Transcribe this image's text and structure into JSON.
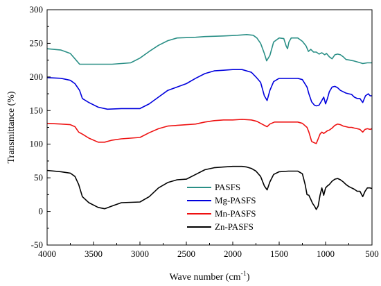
{
  "chart_data": {
    "type": "line",
    "xlabel": "Wave number (cm",
    "xlabel_sup": "-1",
    "xlabel_end": ")",
    "ylabel": "Transmittance (%)",
    "xlim": [
      4000,
      500
    ],
    "ylim": [
      -50,
      300
    ],
    "xticks": [
      4000,
      3500,
      3000,
      2500,
      2000,
      1500,
      1000,
      500
    ],
    "yticks": [
      -50,
      0,
      50,
      100,
      150,
      200,
      250,
      300
    ],
    "grid": false,
    "legend_position": "bottom-center",
    "series": [
      {
        "name": "PASFS",
        "color": "#2a8f86",
        "points": [
          [
            4000,
            242
          ],
          [
            3850,
            240
          ],
          [
            3750,
            235
          ],
          [
            3700,
            227
          ],
          [
            3650,
            219
          ],
          [
            3500,
            219
          ],
          [
            3300,
            219
          ],
          [
            3100,
            221
          ],
          [
            3000,
            228
          ],
          [
            2900,
            238
          ],
          [
            2800,
            247
          ],
          [
            2700,
            254
          ],
          [
            2600,
            258
          ],
          [
            2400,
            259
          ],
          [
            2300,
            260
          ],
          [
            2100,
            261
          ],
          [
            1950,
            262
          ],
          [
            1850,
            263
          ],
          [
            1780,
            262
          ],
          [
            1740,
            258
          ],
          [
            1700,
            250
          ],
          [
            1660,
            235
          ],
          [
            1635,
            224
          ],
          [
            1600,
            232
          ],
          [
            1560,
            252
          ],
          [
            1500,
            258
          ],
          [
            1450,
            257
          ],
          [
            1425,
            246
          ],
          [
            1410,
            242
          ],
          [
            1395,
            252
          ],
          [
            1370,
            258
          ],
          [
            1300,
            258
          ],
          [
            1250,
            253
          ],
          [
            1210,
            246
          ],
          [
            1185,
            238
          ],
          [
            1160,
            241
          ],
          [
            1130,
            237
          ],
          [
            1100,
            237
          ],
          [
            1070,
            234
          ],
          [
            1040,
            236
          ],
          [
            1010,
            233
          ],
          [
            990,
            235
          ],
          [
            960,
            230
          ],
          [
            930,
            227
          ],
          [
            900,
            233
          ],
          [
            870,
            234
          ],
          [
            840,
            233
          ],
          [
            810,
            230
          ],
          [
            780,
            226
          ],
          [
            740,
            225
          ],
          [
            700,
            224
          ],
          [
            650,
            222
          ],
          [
            600,
            220
          ],
          [
            550,
            221
          ],
          [
            500,
            221
          ]
        ]
      },
      {
        "name": "Mg-PASFS",
        "color": "#0000dd",
        "points": [
          [
            4000,
            199
          ],
          [
            3850,
            198
          ],
          [
            3750,
            195
          ],
          [
            3700,
            190
          ],
          [
            3650,
            180
          ],
          [
            3620,
            168
          ],
          [
            3550,
            162
          ],
          [
            3450,
            155
          ],
          [
            3350,
            152
          ],
          [
            3200,
            153
          ],
          [
            3000,
            153
          ],
          [
            2900,
            160
          ],
          [
            2800,
            170
          ],
          [
            2700,
            180
          ],
          [
            2600,
            185
          ],
          [
            2500,
            190
          ],
          [
            2400,
            198
          ],
          [
            2300,
            205
          ],
          [
            2200,
            209
          ],
          [
            2100,
            210
          ],
          [
            2000,
            211
          ],
          [
            1900,
            211
          ],
          [
            1800,
            207
          ],
          [
            1750,
            200
          ],
          [
            1700,
            192
          ],
          [
            1660,
            172
          ],
          [
            1630,
            165
          ],
          [
            1600,
            180
          ],
          [
            1560,
            193
          ],
          [
            1500,
            198
          ],
          [
            1400,
            198
          ],
          [
            1300,
            198
          ],
          [
            1250,
            196
          ],
          [
            1200,
            185
          ],
          [
            1180,
            175
          ],
          [
            1150,
            163
          ],
          [
            1120,
            158
          ],
          [
            1100,
            157
          ],
          [
            1070,
            158
          ],
          [
            1040,
            165
          ],
          [
            1020,
            170
          ],
          [
            1000,
            160
          ],
          [
            980,
            168
          ],
          [
            960,
            178
          ],
          [
            930,
            185
          ],
          [
            900,
            186
          ],
          [
            870,
            184
          ],
          [
            840,
            180
          ],
          [
            810,
            178
          ],
          [
            780,
            176
          ],
          [
            750,
            175
          ],
          [
            720,
            174
          ],
          [
            690,
            170
          ],
          [
            660,
            168
          ],
          [
            630,
            168
          ],
          [
            600,
            162
          ],
          [
            570,
            172
          ],
          [
            540,
            175
          ],
          [
            520,
            172
          ],
          [
            500,
            172
          ]
        ]
      },
      {
        "name": "Mn-PASFS",
        "color": "#ee1111",
        "points": [
          [
            4000,
            131
          ],
          [
            3850,
            130
          ],
          [
            3750,
            129
          ],
          [
            3700,
            126
          ],
          [
            3660,
            118
          ],
          [
            3620,
            115
          ],
          [
            3550,
            109
          ],
          [
            3450,
            103
          ],
          [
            3380,
            103
          ],
          [
            3300,
            106
          ],
          [
            3200,
            108
          ],
          [
            3000,
            110
          ],
          [
            2900,
            117
          ],
          [
            2800,
            123
          ],
          [
            2700,
            127
          ],
          [
            2600,
            128
          ],
          [
            2400,
            130
          ],
          [
            2300,
            133
          ],
          [
            2200,
            135
          ],
          [
            2100,
            136
          ],
          [
            2000,
            136
          ],
          [
            1900,
            137
          ],
          [
            1800,
            136
          ],
          [
            1740,
            134
          ],
          [
            1700,
            131
          ],
          [
            1660,
            128
          ],
          [
            1630,
            126
          ],
          [
            1600,
            130
          ],
          [
            1550,
            133
          ],
          [
            1500,
            133
          ],
          [
            1400,
            133
          ],
          [
            1300,
            133
          ],
          [
            1250,
            131
          ],
          [
            1200,
            125
          ],
          [
            1180,
            118
          ],
          [
            1150,
            104
          ],
          [
            1120,
            102
          ],
          [
            1100,
            101
          ],
          [
            1080,
            108
          ],
          [
            1060,
            115
          ],
          [
            1040,
            118
          ],
          [
            1020,
            116
          ],
          [
            1000,
            118
          ],
          [
            980,
            120
          ],
          [
            960,
            121
          ],
          [
            930,
            124
          ],
          [
            900,
            128
          ],
          [
            870,
            130
          ],
          [
            840,
            129
          ],
          [
            810,
            127
          ],
          [
            780,
            126
          ],
          [
            750,
            125
          ],
          [
            720,
            125
          ],
          [
            690,
            124
          ],
          [
            660,
            123
          ],
          [
            630,
            122
          ],
          [
            600,
            118
          ],
          [
            575,
            122
          ],
          [
            550,
            123
          ],
          [
            520,
            122
          ],
          [
            500,
            123
          ]
        ]
      },
      {
        "name": "Zn-PASFS",
        "color": "#000000",
        "points": [
          [
            4000,
            61
          ],
          [
            3850,
            59
          ],
          [
            3750,
            57
          ],
          [
            3700,
            52
          ],
          [
            3660,
            40
          ],
          [
            3620,
            22
          ],
          [
            3550,
            13
          ],
          [
            3450,
            6
          ],
          [
            3380,
            4
          ],
          [
            3300,
            8
          ],
          [
            3200,
            13
          ],
          [
            3000,
            14
          ],
          [
            2900,
            22
          ],
          [
            2800,
            35
          ],
          [
            2700,
            43
          ],
          [
            2600,
            47
          ],
          [
            2500,
            48
          ],
          [
            2400,
            55
          ],
          [
            2300,
            62
          ],
          [
            2200,
            65
          ],
          [
            2100,
            66
          ],
          [
            2000,
            67
          ],
          [
            1900,
            67
          ],
          [
            1850,
            66
          ],
          [
            1800,
            64
          ],
          [
            1750,
            60
          ],
          [
            1700,
            52
          ],
          [
            1660,
            38
          ],
          [
            1630,
            32
          ],
          [
            1600,
            44
          ],
          [
            1560,
            55
          ],
          [
            1500,
            59
          ],
          [
            1400,
            60
          ],
          [
            1300,
            60
          ],
          [
            1250,
            56
          ],
          [
            1220,
            40
          ],
          [
            1200,
            25
          ],
          [
            1180,
            24
          ],
          [
            1160,
            18
          ],
          [
            1140,
            12
          ],
          [
            1120,
            8
          ],
          [
            1100,
            3
          ],
          [
            1080,
            8
          ],
          [
            1060,
            24
          ],
          [
            1040,
            35
          ],
          [
            1020,
            24
          ],
          [
            1000,
            35
          ],
          [
            980,
            38
          ],
          [
            960,
            40
          ],
          [
            930,
            45
          ],
          [
            900,
            48
          ],
          [
            870,
            49
          ],
          [
            840,
            47
          ],
          [
            810,
            44
          ],
          [
            780,
            40
          ],
          [
            750,
            37
          ],
          [
            720,
            35
          ],
          [
            690,
            33
          ],
          [
            660,
            30
          ],
          [
            630,
            30
          ],
          [
            600,
            22
          ],
          [
            575,
            30
          ],
          [
            550,
            35
          ],
          [
            520,
            35
          ],
          [
            500,
            34
          ]
        ]
      }
    ]
  }
}
